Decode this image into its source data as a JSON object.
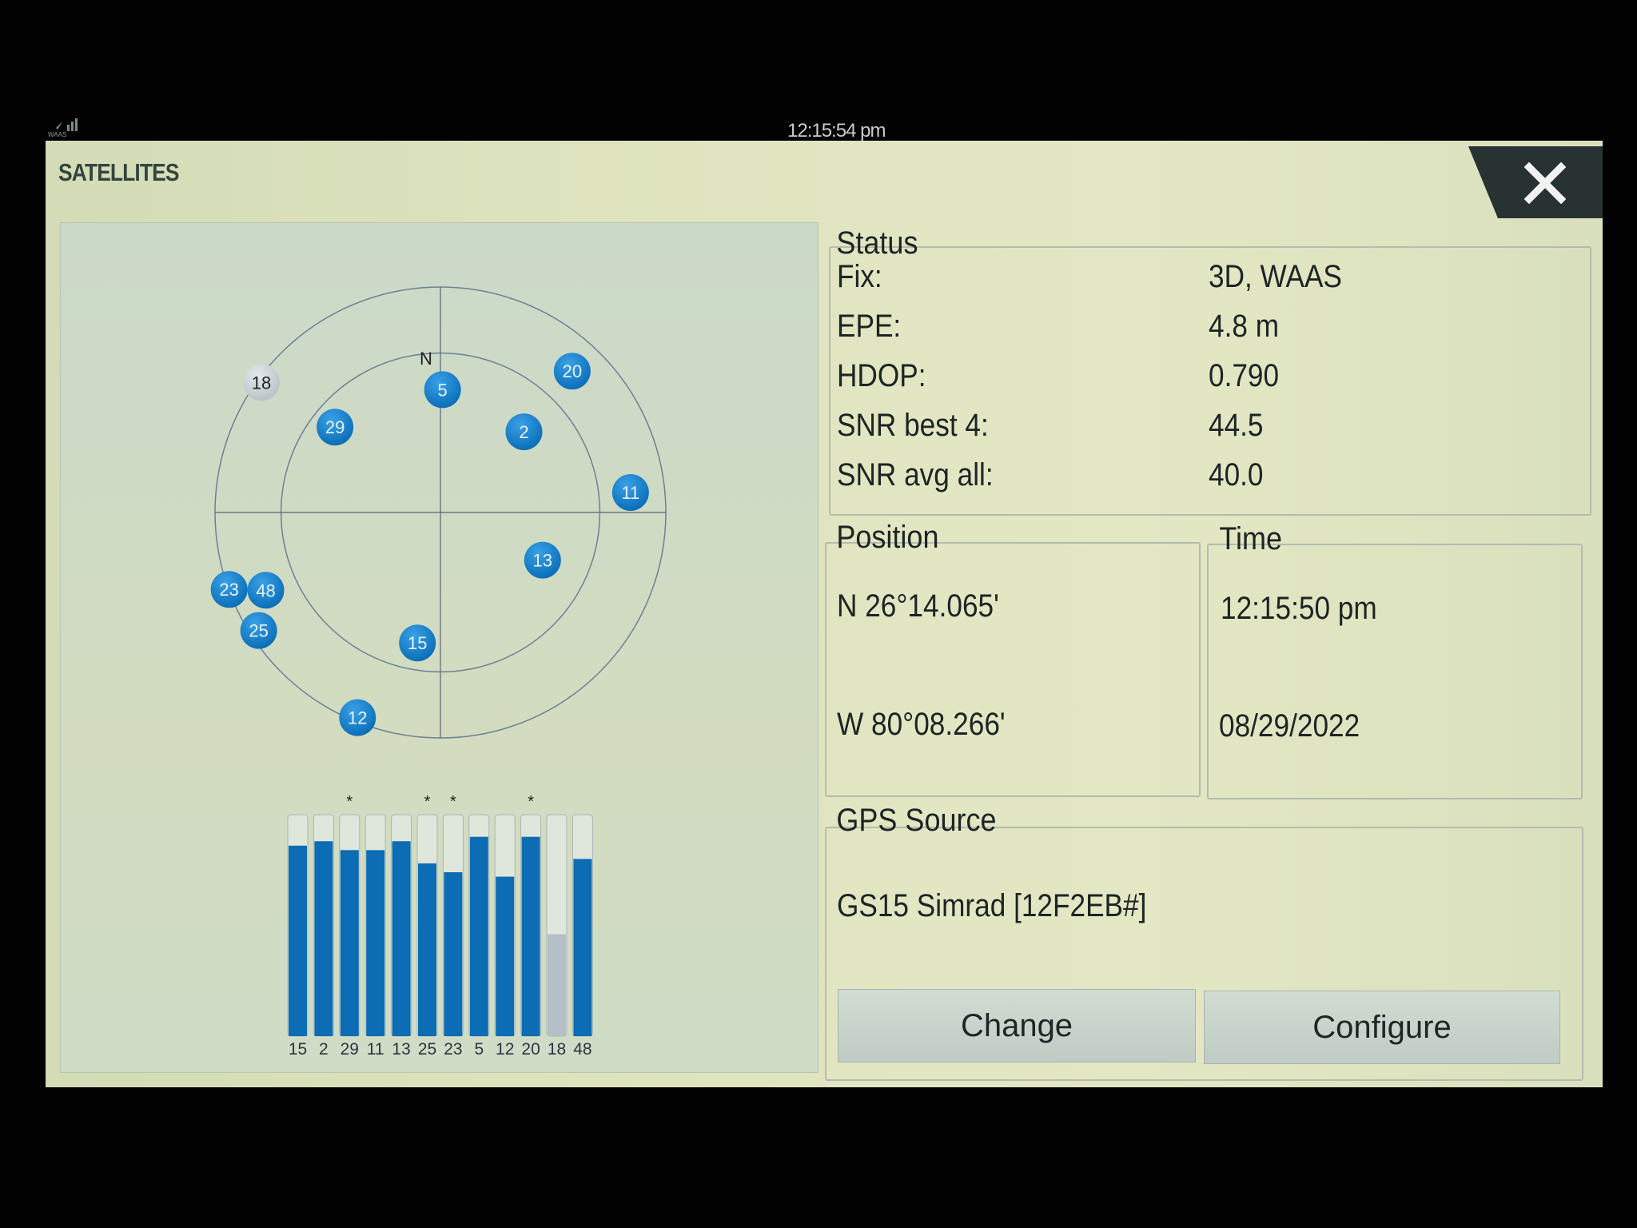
{
  "statusbar": {
    "time": "12:15:54 pm",
    "waas_icon": "waas-signal-icon",
    "waas_text": "WAAS"
  },
  "window": {
    "title": "SATELLITES",
    "close_icon": "close-icon"
  },
  "skyplot": {
    "north_label": "N",
    "projection": "cosine of elevation (outer ring 0°, inner ring 45°)",
    "colors": {
      "tracked": "#0a6fb8",
      "not_used": "#b9c3c8"
    },
    "satellites": [
      {
        "prn": "18",
        "azimuth": 306,
        "elevation": 11,
        "used": false
      },
      {
        "prn": "5",
        "azimuth": 1,
        "elevation": 57,
        "used": true
      },
      {
        "prn": "20",
        "azimuth": 43,
        "elevation": 31,
        "used": true
      },
      {
        "prn": "29",
        "azimuth": 309,
        "elevation": 53,
        "used": true
      },
      {
        "prn": "2",
        "azimuth": 46,
        "elevation": 59,
        "used": true
      },
      {
        "prn": "11",
        "azimuth": 84,
        "elevation": 32,
        "used": true
      },
      {
        "prn": "13",
        "azimuth": 115,
        "elevation": 60,
        "used": true
      },
      {
        "prn": "23",
        "azimuth": 250,
        "elevation": 4,
        "used": true
      },
      {
        "prn": "48",
        "azimuth": 246,
        "elevation": 32,
        "used": true
      },
      {
        "prn": "25",
        "azimuth": 237,
        "elevation": 16,
        "used": true
      },
      {
        "prn": "15",
        "azimuth": 190,
        "elevation": 54,
        "used": true
      },
      {
        "prn": "12",
        "azimuth": 202,
        "elevation": 11,
        "used": true
      }
    ]
  },
  "signal_bars": [
    {
      "prn": "15",
      "level": 0.86,
      "star": false,
      "used": true
    },
    {
      "prn": "2",
      "level": 0.88,
      "star": false,
      "used": true
    },
    {
      "prn": "29",
      "level": 0.84,
      "star": true,
      "used": true
    },
    {
      "prn": "11",
      "level": 0.84,
      "star": false,
      "used": true
    },
    {
      "prn": "13",
      "level": 0.88,
      "star": false,
      "used": true
    },
    {
      "prn": "25",
      "level": 0.78,
      "star": true,
      "used": true
    },
    {
      "prn": "23",
      "level": 0.74,
      "star": true,
      "used": true
    },
    {
      "prn": "5",
      "level": 0.9,
      "star": false,
      "used": true
    },
    {
      "prn": "12",
      "level": 0.72,
      "star": false,
      "used": true
    },
    {
      "prn": "20",
      "level": 0.9,
      "star": true,
      "used": true
    },
    {
      "prn": "18",
      "level": 0.46,
      "star": false,
      "used": false
    },
    {
      "prn": "48",
      "level": 0.8,
      "star": false,
      "used": true
    }
  ],
  "status": {
    "legend": "Status",
    "rows": [
      {
        "label": "Fix:",
        "value": "3D, WAAS"
      },
      {
        "label": "EPE:",
        "value": "4.8 m"
      },
      {
        "label": "HDOP:",
        "value": "0.790"
      },
      {
        "label": "SNR best 4:",
        "value": "44.5"
      },
      {
        "label": "SNR avg all:",
        "value": "40.0"
      }
    ]
  },
  "position": {
    "legend": "Position",
    "lat": "N  26°14.065'",
    "lon": "W  80°08.266'"
  },
  "time": {
    "legend": "Time",
    "clock": "12:15:50 pm",
    "date": "08/29/2022"
  },
  "gps_source": {
    "legend": "GPS Source",
    "device": "GS15 Simrad [12F2EB#]",
    "change_label": "Change",
    "configure_label": "Configure"
  }
}
